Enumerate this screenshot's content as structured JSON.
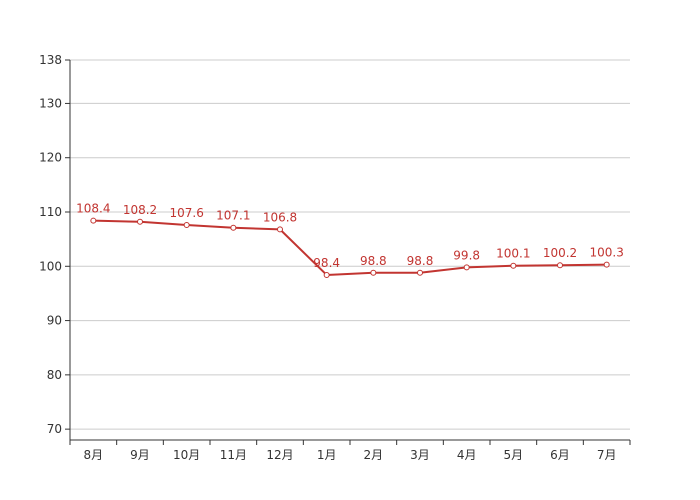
{
  "chart_data": {
    "type": "line",
    "categories": [
      "8月",
      "9月",
      "10月",
      "11月",
      "12月",
      "1月",
      "2月",
      "3月",
      "4月",
      "5月",
      "6月",
      "7月"
    ],
    "series": [
      {
        "values": [
          108.4,
          108.2,
          107.6,
          107.1,
          106.8,
          98.4,
          98.8,
          98.8,
          99.8,
          100.1,
          100.2,
          100.3
        ],
        "color": "#c23531"
      }
    ],
    "ylim": [
      68,
      138
    ],
    "yticks": [
      70,
      80,
      90,
      100,
      110,
      120,
      130,
      138
    ],
    "data_labels": [
      "108.4",
      "108.2",
      "107.6",
      "107.1",
      "106.8",
      "98.4",
      "98.8",
      "98.8",
      "99.8",
      "100.1",
      "100.2",
      "100.3"
    ],
    "ytick_labels": [
      "70",
      "80",
      "90",
      "100",
      "110",
      "120",
      "130",
      "138"
    ],
    "grid": true,
    "colors": {
      "axis": "#333333",
      "grid": "#cccccc",
      "series": "#c23531"
    }
  }
}
